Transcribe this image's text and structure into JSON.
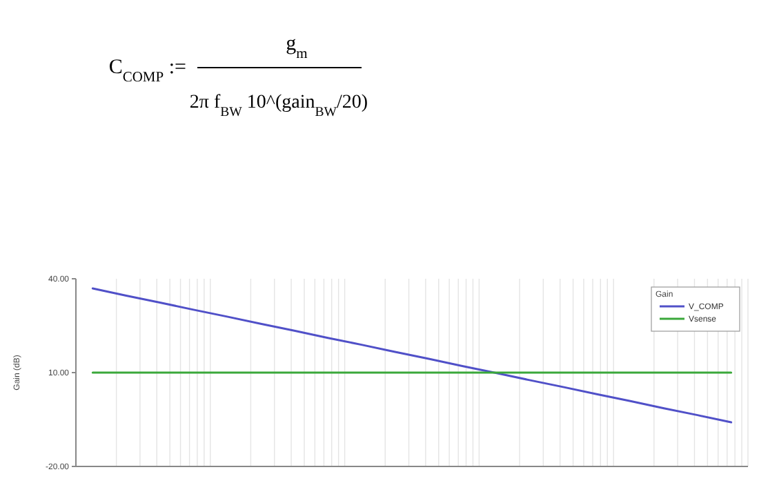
{
  "chart_data": {
    "type": "line",
    "ylabel": "Gain (dB)",
    "legend_title": "Gain",
    "legend": "top right",
    "annotations": [
      "C$_{COMP}$ :=",
      "g$_{m}$",
      "2π f$_{BW}$ 10^(gain$_{BW}$/20)"
    ],
    "categories": [
      null,
      null,
      null,
      null,
      null,
      null,
      null,
      null,
      null,
      null,
      null,
      null,
      null,
      null,
      null,
      null,
      null,
      null,
      null,
      null
    ],
    "series": [
      {
        "name": "V_COMP",
        "color": "#5050c8",
        "values": [
          36.9,
          34.6,
          32.4,
          30.1,
          27.9,
          25.6,
          23.4,
          21.1,
          18.9,
          16.6,
          14.4,
          12.1,
          9.9,
          7.6,
          5.4,
          3.1,
          0.9,
          -1.4,
          -3.6,
          -5.9
        ]
      },
      {
        "name": "Vsense",
        "color": "#3aa83a",
        "values": [
          10,
          10,
          10,
          10,
          10,
          10,
          10,
          10,
          10,
          10,
          10,
          10,
          10,
          10,
          10,
          10,
          10,
          10,
          10,
          10
        ]
      }
    ],
    "ylim": [
      -20,
      40
    ],
    "yticks": [
      {
        "value": -20,
        "label": "-20.00"
      },
      {
        "value": 10,
        "label": "10.00"
      },
      {
        "value": 40,
        "label": "40.00"
      }
    ]
  }
}
